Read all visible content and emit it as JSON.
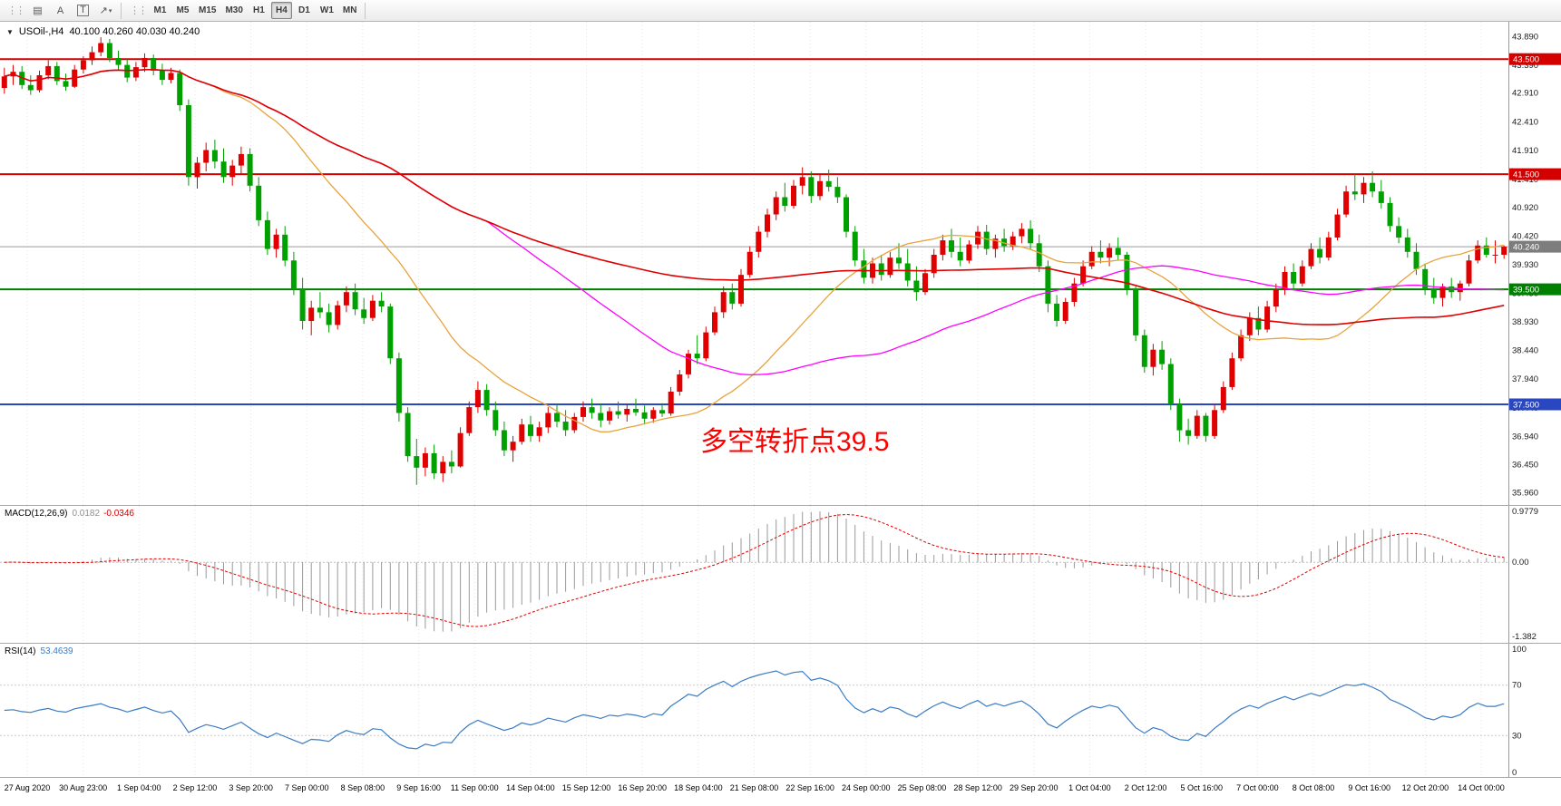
{
  "toolbar": {
    "tool_buttons": [
      {
        "name": "charts-grid-tool",
        "glyph": "▤"
      },
      {
        "name": "text-tool",
        "glyph": "A"
      },
      {
        "name": "text-label-tool",
        "glyph": "T",
        "boxed": true
      },
      {
        "name": "arrows-dropdown-tool",
        "glyph": "↗",
        "caret": "▾"
      }
    ],
    "timeframes": [
      "M1",
      "M5",
      "M15",
      "M30",
      "H1",
      "H4",
      "D1",
      "W1",
      "MN"
    ],
    "active_timeframe": "H4"
  },
  "chart_data": {
    "type": "candlestick",
    "title": "USOil-,H4",
    "ohlc_text": "40.100 40.260 40.030 40.240",
    "collapse_icon": "▼",
    "ylim": [
      35.75,
      44.15
    ],
    "y_labels": [
      "43.890",
      "43.390",
      "42.910",
      "42.410",
      "41.910",
      "41.410",
      "40.920",
      "40.420",
      "39.930",
      "39.430",
      "38.930",
      "38.440",
      "37.940",
      "37.440",
      "36.940",
      "36.450",
      "35.960"
    ],
    "x_labels": [
      "27 Aug 2020",
      "30 Aug 23:00",
      "1 Sep 04:00",
      "2 Sep 12:00",
      "3 Sep 20:00",
      "7 Sep 00:00",
      "8 Sep 08:00",
      "9 Sep 16:00",
      "11 Sep 00:00",
      "14 Sep 04:00",
      "15 Sep 12:00",
      "16 Sep 20:00",
      "18 Sep 04:00",
      "21 Sep 08:00",
      "22 Sep 16:00",
      "24 Sep 00:00",
      "25 Sep 08:00",
      "28 Sep 12:00",
      "29 Sep 20:00",
      "1 Oct 04:00",
      "2 Oct 12:00",
      "5 Oct 16:00",
      "7 Oct 00:00",
      "8 Oct 08:00",
      "9 Oct 16:00",
      "12 Oct 20:00",
      "14 Oct 00:00"
    ],
    "colors": {
      "up": "#e00000",
      "down": "#00a000",
      "grid": "#e4e4e4"
    },
    "hlines": [
      {
        "price": 43.5,
        "label": "43.500",
        "color": "#d40000"
      },
      {
        "price": 41.5,
        "label": "41.500",
        "color": "#d40000"
      },
      {
        "price": 39.5,
        "label": "39.500",
        "color": "#008000"
      },
      {
        "price": 37.5,
        "label": "37.500",
        "color": "#2847c0"
      }
    ],
    "current_price": {
      "value": 40.24,
      "label": "40.240",
      "color": "#7d7d7d"
    },
    "moving_averages": [
      {
        "name": "fast-ma",
        "period": 24,
        "color": "#e8a33d",
        "width": 1.3
      },
      {
        "name": "mid-ma",
        "period": 56,
        "color": "#ff00ff",
        "width": 1.3
      },
      {
        "name": "slow-ma",
        "period": 120,
        "color": "#e00000",
        "width": 1.6
      }
    ],
    "annotation": {
      "text": "多空转折点39.5",
      "color": "#ff0000"
    },
    "candles": [
      [
        43.0,
        43.35,
        42.9,
        43.2
      ],
      [
        43.2,
        43.4,
        43.05,
        43.28
      ],
      [
        43.28,
        43.38,
        42.98,
        43.05
      ],
      [
        43.05,
        43.22,
        42.88,
        42.96
      ],
      [
        42.96,
        43.3,
        42.92,
        43.22
      ],
      [
        43.22,
        43.48,
        43.15,
        43.38
      ],
      [
        43.38,
        43.45,
        43.05,
        43.12
      ],
      [
        43.12,
        43.25,
        42.95,
        43.02
      ],
      [
        43.02,
        43.4,
        43.0,
        43.32
      ],
      [
        43.32,
        43.55,
        43.25,
        43.48
      ],
      [
        43.48,
        43.72,
        43.4,
        43.62
      ],
      [
        43.62,
        43.88,
        43.55,
        43.78
      ],
      [
        43.78,
        43.85,
        43.45,
        43.52
      ],
      [
        43.52,
        43.65,
        43.3,
        43.4
      ],
      [
        43.4,
        43.5,
        43.1,
        43.18
      ],
      [
        43.18,
        43.45,
        43.12,
        43.36
      ],
      [
        43.36,
        43.6,
        43.28,
        43.52
      ],
      [
        43.52,
        43.58,
        43.22,
        43.3
      ],
      [
        43.3,
        43.42,
        43.05,
        43.14
      ],
      [
        43.14,
        43.35,
        43.08,
        43.26
      ],
      [
        43.26,
        43.32,
        42.6,
        42.7
      ],
      [
        42.7,
        42.8,
        41.3,
        41.45
      ],
      [
        41.45,
        41.8,
        41.25,
        41.7
      ],
      [
        41.7,
        42.05,
        41.55,
        41.92
      ],
      [
        41.92,
        42.1,
        41.6,
        41.72
      ],
      [
        41.72,
        41.95,
        41.35,
        41.45
      ],
      [
        41.45,
        41.75,
        41.3,
        41.65
      ],
      [
        41.65,
        41.98,
        41.5,
        41.85
      ],
      [
        41.85,
        41.95,
        41.2,
        41.3
      ],
      [
        41.3,
        41.45,
        40.6,
        40.7
      ],
      [
        40.7,
        40.85,
        40.1,
        40.2
      ],
      [
        40.2,
        40.55,
        40.05,
        40.45
      ],
      [
        40.45,
        40.6,
        39.9,
        40.0
      ],
      [
        40.0,
        40.15,
        39.4,
        39.5
      ],
      [
        39.5,
        39.7,
        38.8,
        38.95
      ],
      [
        38.95,
        39.3,
        38.7,
        39.18
      ],
      [
        39.18,
        39.45,
        39.0,
        39.1
      ],
      [
        39.1,
        39.25,
        38.75,
        38.88
      ],
      [
        38.88,
        39.3,
        38.8,
        39.22
      ],
      [
        39.22,
        39.55,
        39.1,
        39.45
      ],
      [
        39.45,
        39.6,
        39.05,
        39.15
      ],
      [
        39.15,
        39.35,
        38.9,
        39.0
      ],
      [
        39.0,
        39.4,
        38.95,
        39.3
      ],
      [
        39.3,
        39.45,
        39.1,
        39.2
      ],
      [
        39.2,
        39.25,
        38.2,
        38.3
      ],
      [
        38.3,
        38.4,
        37.2,
        37.35
      ],
      [
        37.35,
        37.45,
        36.5,
        36.6
      ],
      [
        36.6,
        36.9,
        36.1,
        36.4
      ],
      [
        36.4,
        36.75,
        36.25,
        36.65
      ],
      [
        36.65,
        36.8,
        36.2,
        36.3
      ],
      [
        36.3,
        36.6,
        36.15,
        36.5
      ],
      [
        36.5,
        36.7,
        36.3,
        36.42
      ],
      [
        36.42,
        37.1,
        36.4,
        37.0
      ],
      [
        37.0,
        37.55,
        36.95,
        37.45
      ],
      [
        37.45,
        37.9,
        37.35,
        37.75
      ],
      [
        37.75,
        37.85,
        37.3,
        37.4
      ],
      [
        37.4,
        37.55,
        36.95,
        37.05
      ],
      [
        37.05,
        37.2,
        36.6,
        36.7
      ],
      [
        36.7,
        36.95,
        36.5,
        36.85
      ],
      [
        36.85,
        37.25,
        36.8,
        37.15
      ],
      [
        37.15,
        37.3,
        36.85,
        36.95
      ],
      [
        36.95,
        37.2,
        36.85,
        37.1
      ],
      [
        37.1,
        37.45,
        37.0,
        37.35
      ],
      [
        37.35,
        37.5,
        37.1,
        37.2
      ],
      [
        37.2,
        37.4,
        36.95,
        37.05
      ],
      [
        37.05,
        37.35,
        37.0,
        37.28
      ],
      [
        37.28,
        37.55,
        37.2,
        37.45
      ],
      [
        37.45,
        37.6,
        37.25,
        37.35
      ],
      [
        37.35,
        37.5,
        37.1,
        37.22
      ],
      [
        37.22,
        37.45,
        37.15,
        37.38
      ],
      [
        37.38,
        37.55,
        37.25,
        37.32
      ],
      [
        37.32,
        37.5,
        37.2,
        37.42
      ],
      [
        37.42,
        37.6,
        37.3,
        37.36
      ],
      [
        37.36,
        37.48,
        37.15,
        37.25
      ],
      [
        37.25,
        37.45,
        37.18,
        37.4
      ],
      [
        37.4,
        37.52,
        37.28,
        37.34
      ],
      [
        37.34,
        37.8,
        37.3,
        37.72
      ],
      [
        37.72,
        38.1,
        37.65,
        38.02
      ],
      [
        38.02,
        38.45,
        37.95,
        38.38
      ],
      [
        38.38,
        38.7,
        38.2,
        38.3
      ],
      [
        38.3,
        38.85,
        38.25,
        38.75
      ],
      [
        38.75,
        39.2,
        38.7,
        39.1
      ],
      [
        39.1,
        39.55,
        39.0,
        39.45
      ],
      [
        39.45,
        39.6,
        39.15,
        39.25
      ],
      [
        39.25,
        39.85,
        39.2,
        39.75
      ],
      [
        39.75,
        40.25,
        39.7,
        40.15
      ],
      [
        40.15,
        40.6,
        40.05,
        40.5
      ],
      [
        40.5,
        40.9,
        40.4,
        40.8
      ],
      [
        40.8,
        41.2,
        40.7,
        41.1
      ],
      [
        41.1,
        41.35,
        40.85,
        40.95
      ],
      [
        40.95,
        41.4,
        40.9,
        41.3
      ],
      [
        41.3,
        41.62,
        41.15,
        41.45
      ],
      [
        41.45,
        41.55,
        41.0,
        41.12
      ],
      [
        41.12,
        41.5,
        41.05,
        41.38
      ],
      [
        41.38,
        41.58,
        41.2,
        41.28
      ],
      [
        41.28,
        41.45,
        41.0,
        41.1
      ],
      [
        41.1,
        41.15,
        40.4,
        40.5
      ],
      [
        40.5,
        40.6,
        39.9,
        40.0
      ],
      [
        40.0,
        40.2,
        39.6,
        39.7
      ],
      [
        39.7,
        40.05,
        39.6,
        39.95
      ],
      [
        39.95,
        40.1,
        39.65,
        39.75
      ],
      [
        39.75,
        40.15,
        39.7,
        40.05
      ],
      [
        40.05,
        40.3,
        39.85,
        39.95
      ],
      [
        39.95,
        40.2,
        39.55,
        39.65
      ],
      [
        39.65,
        39.9,
        39.3,
        39.45
      ],
      [
        39.45,
        39.85,
        39.4,
        39.78
      ],
      [
        39.78,
        40.2,
        39.7,
        40.1
      ],
      [
        40.1,
        40.45,
        40.0,
        40.35
      ],
      [
        40.35,
        40.55,
        40.05,
        40.15
      ],
      [
        40.15,
        40.4,
        39.9,
        40.0
      ],
      [
        40.0,
        40.35,
        39.95,
        40.28
      ],
      [
        40.28,
        40.6,
        40.2,
        40.5
      ],
      [
        40.5,
        40.62,
        40.1,
        40.2
      ],
      [
        40.2,
        40.45,
        40.05,
        40.38
      ],
      [
        40.38,
        40.55,
        40.15,
        40.25
      ],
      [
        40.25,
        40.5,
        40.18,
        40.42
      ],
      [
        40.42,
        40.65,
        40.3,
        40.55
      ],
      [
        40.55,
        40.7,
        40.2,
        40.3
      ],
      [
        40.3,
        40.45,
        39.8,
        39.9
      ],
      [
        39.9,
        40.0,
        39.1,
        39.25
      ],
      [
        39.25,
        39.4,
        38.85,
        38.95
      ],
      [
        38.95,
        39.35,
        38.9,
        39.28
      ],
      [
        39.28,
        39.7,
        39.2,
        39.6
      ],
      [
        39.6,
        40.0,
        39.55,
        39.9
      ],
      [
        39.9,
        40.25,
        39.85,
        40.15
      ],
      [
        40.15,
        40.35,
        39.95,
        40.05
      ],
      [
        40.05,
        40.3,
        39.9,
        40.22
      ],
      [
        40.22,
        40.4,
        40.0,
        40.1
      ],
      [
        40.1,
        40.15,
        39.4,
        39.5
      ],
      [
        39.5,
        39.55,
        38.6,
        38.7
      ],
      [
        38.7,
        38.8,
        38.05,
        38.15
      ],
      [
        38.15,
        38.55,
        38.0,
        38.45
      ],
      [
        38.45,
        38.6,
        38.1,
        38.2
      ],
      [
        38.2,
        38.3,
        37.4,
        37.5
      ],
      [
        37.5,
        37.6,
        36.85,
        37.05
      ],
      [
        37.05,
        37.25,
        36.8,
        36.95
      ],
      [
        36.95,
        37.4,
        36.9,
        37.3
      ],
      [
        37.3,
        37.35,
        36.85,
        36.95
      ],
      [
        36.95,
        37.5,
        36.9,
        37.4
      ],
      [
        37.4,
        37.9,
        37.35,
        37.8
      ],
      [
        37.8,
        38.4,
        37.75,
        38.3
      ],
      [
        38.3,
        38.8,
        38.25,
        38.7
      ],
      [
        38.7,
        39.1,
        38.6,
        39.0
      ],
      [
        39.0,
        39.2,
        38.7,
        38.8
      ],
      [
        38.8,
        39.3,
        38.75,
        39.2
      ],
      [
        39.2,
        39.6,
        39.1,
        39.5
      ],
      [
        39.5,
        39.9,
        39.4,
        39.8
      ],
      [
        39.8,
        39.95,
        39.5,
        39.6
      ],
      [
        39.6,
        40.0,
        39.55,
        39.9
      ],
      [
        39.9,
        40.3,
        39.85,
        40.2
      ],
      [
        40.2,
        40.4,
        39.95,
        40.05
      ],
      [
        40.05,
        40.5,
        40.0,
        40.4
      ],
      [
        40.4,
        40.9,
        40.35,
        40.8
      ],
      [
        40.8,
        41.3,
        40.75,
        41.2
      ],
      [
        41.2,
        41.5,
        41.05,
        41.15
      ],
      [
        41.15,
        41.45,
        41.0,
        41.35
      ],
      [
        41.35,
        41.55,
        41.1,
        41.2
      ],
      [
        41.2,
        41.4,
        40.9,
        41.0
      ],
      [
        41.0,
        41.1,
        40.5,
        40.6
      ],
      [
        40.6,
        40.75,
        40.3,
        40.4
      ],
      [
        40.4,
        40.55,
        40.05,
        40.15
      ],
      [
        40.15,
        40.3,
        39.75,
        39.85
      ],
      [
        39.85,
        39.95,
        39.4,
        39.5
      ],
      [
        39.5,
        39.7,
        39.25,
        39.35
      ],
      [
        39.35,
        39.6,
        39.2,
        39.55
      ],
      [
        39.55,
        39.7,
        39.35,
        39.45
      ],
      [
        39.45,
        39.65,
        39.3,
        39.6
      ],
      [
        39.6,
        40.1,
        39.55,
        40.0
      ],
      [
        40.0,
        40.35,
        39.95,
        40.26
      ],
      [
        40.26,
        40.4,
        40.05,
        40.1
      ],
      [
        40.1,
        40.35,
        39.95,
        40.1
      ],
      [
        40.1,
        40.26,
        40.03,
        40.24
      ]
    ],
    "indicators": [
      {
        "type": "macd",
        "label": "MACD(12,26,9)",
        "value_main": "0.0182",
        "value_signal": "-0.0346",
        "params": [
          12,
          26,
          9
        ],
        "ylim": [
          -1.5,
          1.05
        ],
        "y_labels": [
          "0.9779",
          "0.00",
          "-1.382"
        ],
        "colors": {
          "hist": "#9a9a9a",
          "signal": "#e00000"
        }
      },
      {
        "type": "rsi",
        "label": "RSI(14)",
        "value": "53.4639",
        "period": 14,
        "ylim": [
          0,
          100
        ],
        "y_labels": [
          "100",
          "70",
          "30",
          "0"
        ],
        "levels": [
          70,
          30
        ],
        "color": "#3b7cc4"
      }
    ]
  }
}
